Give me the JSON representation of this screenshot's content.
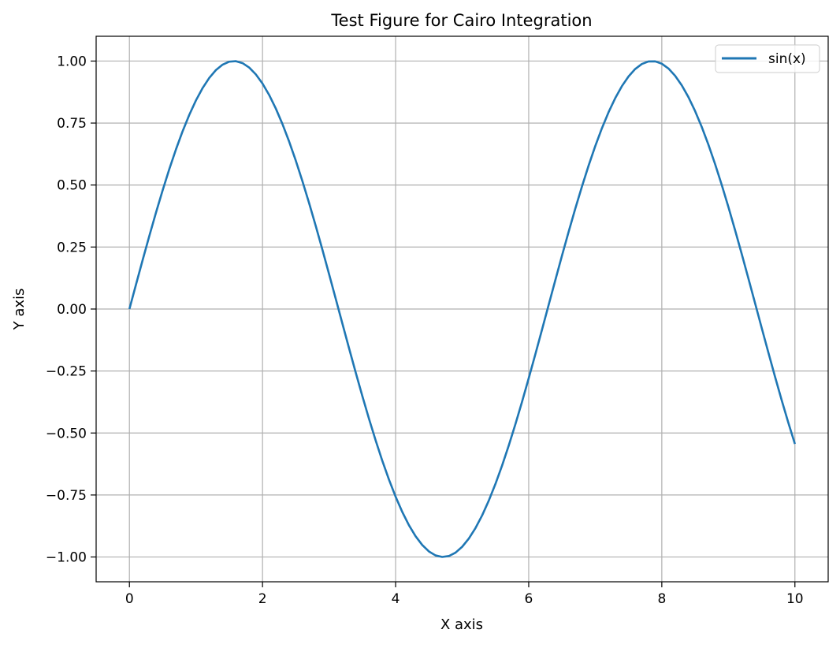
{
  "chart_data": {
    "type": "line",
    "title": "Test Figure for Cairo Integration",
    "xlabel": "X axis",
    "ylabel": "Y axis",
    "xlim": [
      -0.5,
      10.5
    ],
    "ylim": [
      -1.1,
      1.1
    ],
    "xticks": [
      0,
      2,
      4,
      6,
      8,
      10
    ],
    "xtick_labels": [
      "0",
      "2",
      "4",
      "6",
      "8",
      "10"
    ],
    "yticks": [
      1.0,
      0.75,
      0.5,
      0.25,
      0.0,
      -0.25,
      -0.5,
      -0.75,
      -1.0
    ],
    "ytick_labels": [
      "1.00",
      "0.75",
      "0.50",
      "0.25",
      "0.00",
      "−0.25",
      "−0.50",
      "−0.75",
      "−1.00"
    ],
    "grid": true,
    "legend_position": "top-right",
    "series": [
      {
        "name": "sin(x)",
        "color": "#1f77b4",
        "x": [
          0.0,
          0.1,
          0.2,
          0.3,
          0.4,
          0.5,
          0.6,
          0.7,
          0.8,
          0.9,
          1.0,
          1.1,
          1.2,
          1.3,
          1.4,
          1.5,
          1.6,
          1.7,
          1.8,
          1.9,
          2.0,
          2.1,
          2.2,
          2.3,
          2.4,
          2.5,
          2.6,
          2.7,
          2.8,
          2.9,
          3.0,
          3.1,
          3.2,
          3.3,
          3.4,
          3.5,
          3.6,
          3.7,
          3.8,
          3.9,
          4.0,
          4.1,
          4.2,
          4.3,
          4.4,
          4.5,
          4.6,
          4.7,
          4.8,
          4.9,
          5.0,
          5.1,
          5.2,
          5.3,
          5.4,
          5.5,
          5.6,
          5.7,
          5.8,
          5.9,
          6.0,
          6.1,
          6.2,
          6.3,
          6.4,
          6.5,
          6.6,
          6.7,
          6.8,
          6.9,
          7.0,
          7.1,
          7.2,
          7.3,
          7.4,
          7.5,
          7.6,
          7.7,
          7.8,
          7.9,
          8.0,
          8.1,
          8.2,
          8.3,
          8.4,
          8.5,
          8.6,
          8.7,
          8.8,
          8.9,
          9.0,
          9.1,
          9.2,
          9.3,
          9.4,
          9.5,
          9.6,
          9.7,
          9.8,
          9.9,
          10.0
        ],
        "y": [
          0.0,
          0.0998,
          0.1987,
          0.2955,
          0.3894,
          0.4794,
          0.5646,
          0.6442,
          0.7174,
          0.7833,
          0.8415,
          0.8912,
          0.932,
          0.9636,
          0.9854,
          0.9975,
          0.9996,
          0.9917,
          0.9738,
          0.9463,
          0.9093,
          0.8632,
          0.8085,
          0.7457,
          0.6755,
          0.5985,
          0.5155,
          0.4274,
          0.335,
          0.2392,
          0.1411,
          0.0416,
          -0.0584,
          -0.1577,
          -0.2555,
          -0.3508,
          -0.4425,
          -0.5298,
          -0.6119,
          -0.6878,
          -0.7568,
          -0.8183,
          -0.8716,
          -0.9162,
          -0.9516,
          -0.9775,
          -0.9937,
          -0.9999,
          -0.9962,
          -0.9825,
          -0.9589,
          -0.9258,
          -0.8835,
          -0.8323,
          -0.7728,
          -0.7055,
          -0.6313,
          -0.5507,
          -0.4646,
          -0.3739,
          -0.2794,
          -0.1822,
          -0.0831,
          0.0168,
          0.1165,
          0.2151,
          0.3115,
          0.4048,
          0.4941,
          0.5784,
          0.657,
          0.729,
          0.7937,
          0.8504,
          0.8987,
          0.938,
          0.9679,
          0.9882,
          0.9985,
          0.9989,
          0.9894,
          0.9699,
          0.9407,
          0.9022,
          0.8546,
          0.7985,
          0.7344,
          0.663,
          0.585,
          0.501,
          0.4121,
          0.3191,
          0.2229,
          0.1245,
          0.0248,
          -0.0752,
          -0.1743,
          -0.2718,
          -0.3665,
          -0.4575,
          -0.544
        ]
      }
    ]
  }
}
